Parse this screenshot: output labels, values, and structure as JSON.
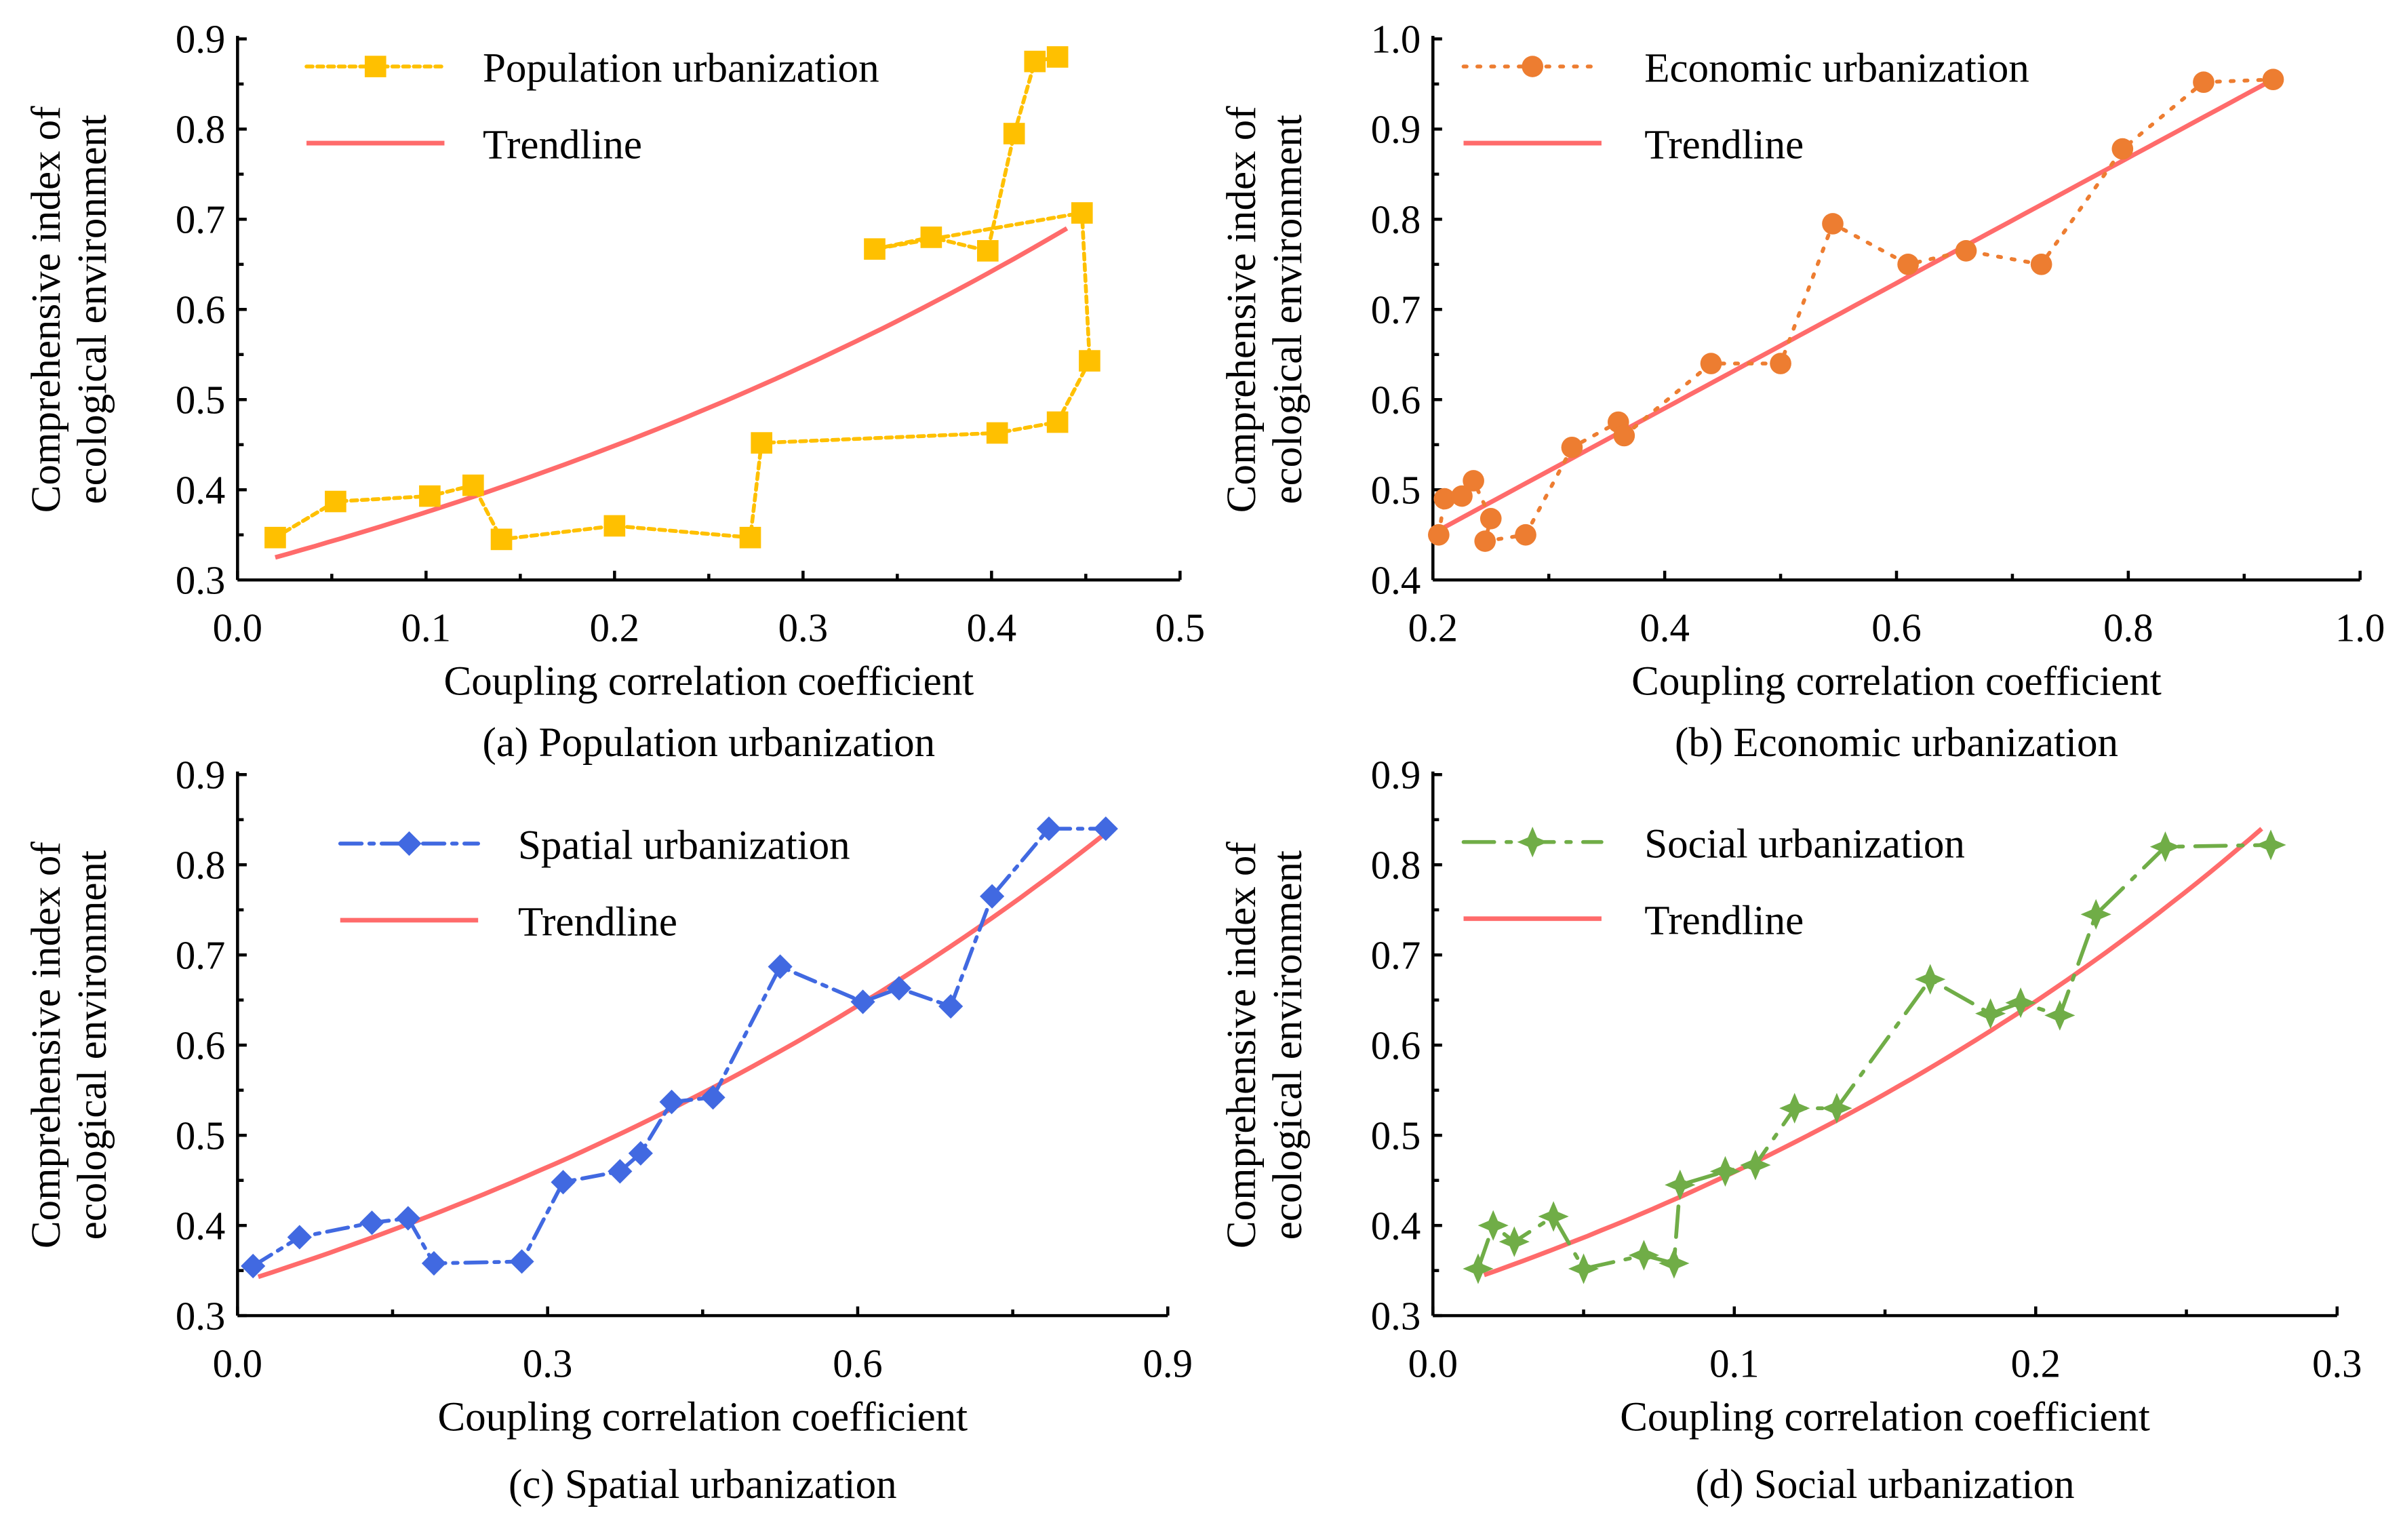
{
  "chart_data": [
    {
      "type": "line",
      "caption": "(a) Population urbanization",
      "xlabel": "Coupling correlation coefficient",
      "ylabel": [
        "Comprehensive index of",
        "ecological environment"
      ],
      "xlim": [
        0,
        0.5
      ],
      "ylim": [
        0.3,
        0.9
      ],
      "xticks": [
        "0.0",
        "0.1",
        "0.2",
        "0.3",
        "0.4",
        "0.5"
      ],
      "yticks": [
        "0.3",
        "0.4",
        "0.5",
        "0.6",
        "0.7",
        "0.8",
        "0.9"
      ],
      "legend": "top-left",
      "series": [
        {
          "name": "Population urbanization",
          "color": "#FFC000",
          "marker": "square",
          "x": [
            0.02,
            0.052,
            0.102,
            0.125,
            0.14,
            0.2,
            0.272,
            0.278,
            0.403,
            0.435,
            0.452,
            0.448,
            0.338,
            0.368,
            0.398,
            0.412,
            0.423,
            0.435
          ],
          "y": [
            0.347,
            0.387,
            0.393,
            0.405,
            0.345,
            0.36,
            0.347,
            0.452,
            0.463,
            0.475,
            0.543,
            0.707,
            0.667,
            0.68,
            0.665,
            0.795,
            0.875,
            0.88
          ]
        },
        {
          "name": "Trendline",
          "color": "#FF6B6B",
          "fit": "exponential",
          "x_range": [
            0.02,
            0.44
          ],
          "y_range": [
            0.325,
            0.69
          ]
        }
      ]
    },
    {
      "type": "line",
      "caption": "(b) Economic urbanization",
      "xlabel": "Coupling correlation coefficient",
      "ylabel": [
        "Comprehensive index of",
        "ecological environment"
      ],
      "xlim": [
        0.2,
        1.0
      ],
      "ylim": [
        0.4,
        1.0
      ],
      "xticks": [
        "0.2",
        "0.4",
        "0.6",
        "0.8",
        "1.0"
      ],
      "yticks": [
        "0.4",
        "0.5",
        "0.6",
        "0.7",
        "0.8",
        "0.9",
        "1.0"
      ],
      "legend": "top-left",
      "series": [
        {
          "name": "Economic urbanization",
          "color": "#ED7D31",
          "marker": "circle",
          "x": [
            0.205,
            0.21,
            0.225,
            0.235,
            0.25,
            0.245,
            0.28,
            0.32,
            0.36,
            0.365,
            0.44,
            0.5,
            0.545,
            0.61,
            0.66,
            0.725,
            0.795,
            0.865,
            0.925
          ],
          "y": [
            0.45,
            0.49,
            0.493,
            0.51,
            0.468,
            0.443,
            0.45,
            0.547,
            0.575,
            0.56,
            0.64,
            0.64,
            0.795,
            0.75,
            0.765,
            0.75,
            0.878,
            0.952,
            0.955
          ]
        },
        {
          "name": "Trendline",
          "color": "#FF6B6B",
          "fit": "linear",
          "x_range": [
            0.205,
            0.925
          ],
          "y_range": [
            0.455,
            0.955
          ]
        }
      ]
    },
    {
      "type": "line",
      "caption": "(c) Spatial urbanization",
      "xlabel": "Coupling correlation coefficient",
      "ylabel": [
        "Comprehensive index of",
        "ecological environment"
      ],
      "xlim": [
        0,
        0.9
      ],
      "ylim": [
        0.3,
        0.9
      ],
      "xticks": [
        "0.0",
        "0.3",
        "0.6",
        "0.9"
      ],
      "yticks": [
        "0.3",
        "0.4",
        "0.5",
        "0.6",
        "0.7",
        "0.8",
        "0.9"
      ],
      "legend": "top-left",
      "series": [
        {
          "name": "Spatial urbanization",
          "color": "#4169E1",
          "marker": "diamond",
          "x": [
            0.015,
            0.06,
            0.13,
            0.165,
            0.19,
            0.275,
            0.315,
            0.37,
            0.39,
            0.42,
            0.46,
            0.525,
            0.605,
            0.64,
            0.69,
            0.73,
            0.785,
            0.84
          ],
          "y": [
            0.355,
            0.387,
            0.403,
            0.408,
            0.358,
            0.36,
            0.448,
            0.46,
            0.48,
            0.537,
            0.542,
            0.687,
            0.648,
            0.663,
            0.643,
            0.765,
            0.84,
            0.84
          ]
        },
        {
          "name": "Trendline",
          "color": "#FF6B6B",
          "fit": "exponential",
          "x_range": [
            0.02,
            0.84
          ],
          "y_range": [
            0.343,
            0.835
          ]
        }
      ]
    },
    {
      "type": "line",
      "caption": "(d) Social urbanization",
      "xlabel": "Coupling correlation coefficient",
      "ylabel": [
        "Comprehensive index of",
        "ecological environment"
      ],
      "xlim": [
        0,
        0.3
      ],
      "ylim": [
        0.3,
        0.9
      ],
      "xticks": [
        "0.0",
        "0.1",
        "0.2",
        "0.3"
      ],
      "yticks": [
        "0.3",
        "0.4",
        "0.5",
        "0.6",
        "0.7",
        "0.8",
        "0.9"
      ],
      "legend": "top-left",
      "series": [
        {
          "name": "Social urbanization",
          "color": "#70AD47",
          "marker": "star",
          "x": [
            0.015,
            0.02,
            0.027,
            0.04,
            0.05,
            0.07,
            0.08,
            0.082,
            0.097,
            0.107,
            0.12,
            0.134,
            0.165,
            0.185,
            0.195,
            0.208,
            0.22,
            0.243,
            0.278
          ],
          "y": [
            0.352,
            0.4,
            0.382,
            0.41,
            0.352,
            0.367,
            0.358,
            0.445,
            0.46,
            0.467,
            0.53,
            0.53,
            0.673,
            0.635,
            0.647,
            0.633,
            0.745,
            0.82,
            0.822
          ]
        },
        {
          "name": "Trendline",
          "color": "#FF6B6B",
          "fit": "exponential",
          "x_range": [
            0.017,
            0.275
          ],
          "y_range": [
            0.345,
            0.84
          ]
        }
      ]
    }
  ]
}
